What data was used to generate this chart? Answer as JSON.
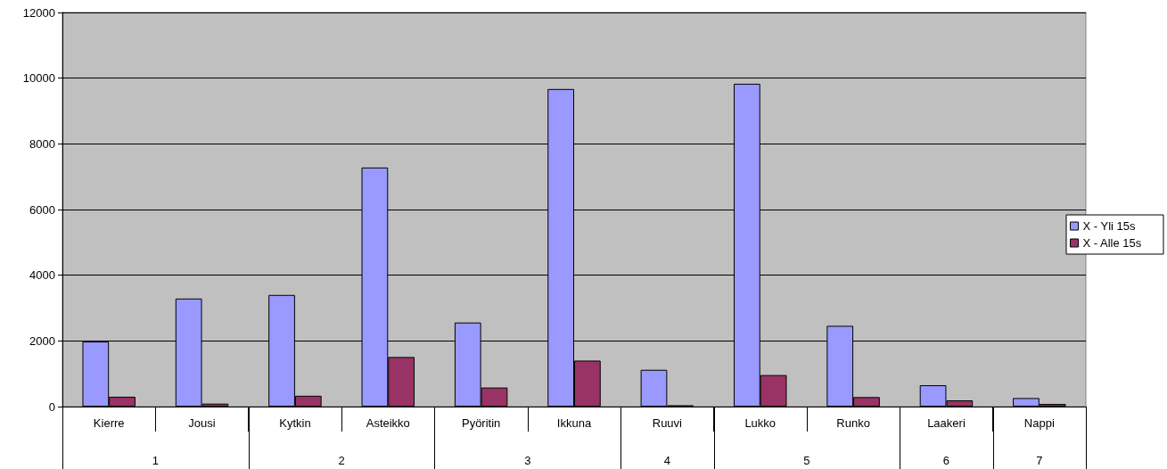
{
  "chart_data": {
    "type": "bar",
    "categories": [
      "Kierre",
      "Jousi",
      "Kytkin",
      "Asteikko",
      "Pyöritin",
      "Ikkuna",
      "Ruuvi",
      "Lukko",
      "Runko",
      "Laakeri",
      "Nappi"
    ],
    "series": [
      {
        "name": "X - Yli 15s",
        "color": "#9999ff",
        "values": [
          1980,
          3290,
          3400,
          7280,
          2560,
          9670,
          1120,
          9830,
          2460,
          650,
          260
        ]
      },
      {
        "name": "X - Alle 15s",
        "color": "#993366",
        "values": [
          300,
          90,
          330,
          1510,
          580,
          1400,
          40,
          960,
          290,
          190,
          80
        ]
      }
    ],
    "annotations": [
      "1",
      "2",
      "3",
      "4",
      "5",
      "6",
      "7"
    ],
    "ylim": [
      0,
      12000
    ],
    "yticks": [
      0,
      2000,
      4000,
      6000,
      8000,
      10000,
      12000
    ],
    "grid": "y",
    "legend": "right"
  }
}
